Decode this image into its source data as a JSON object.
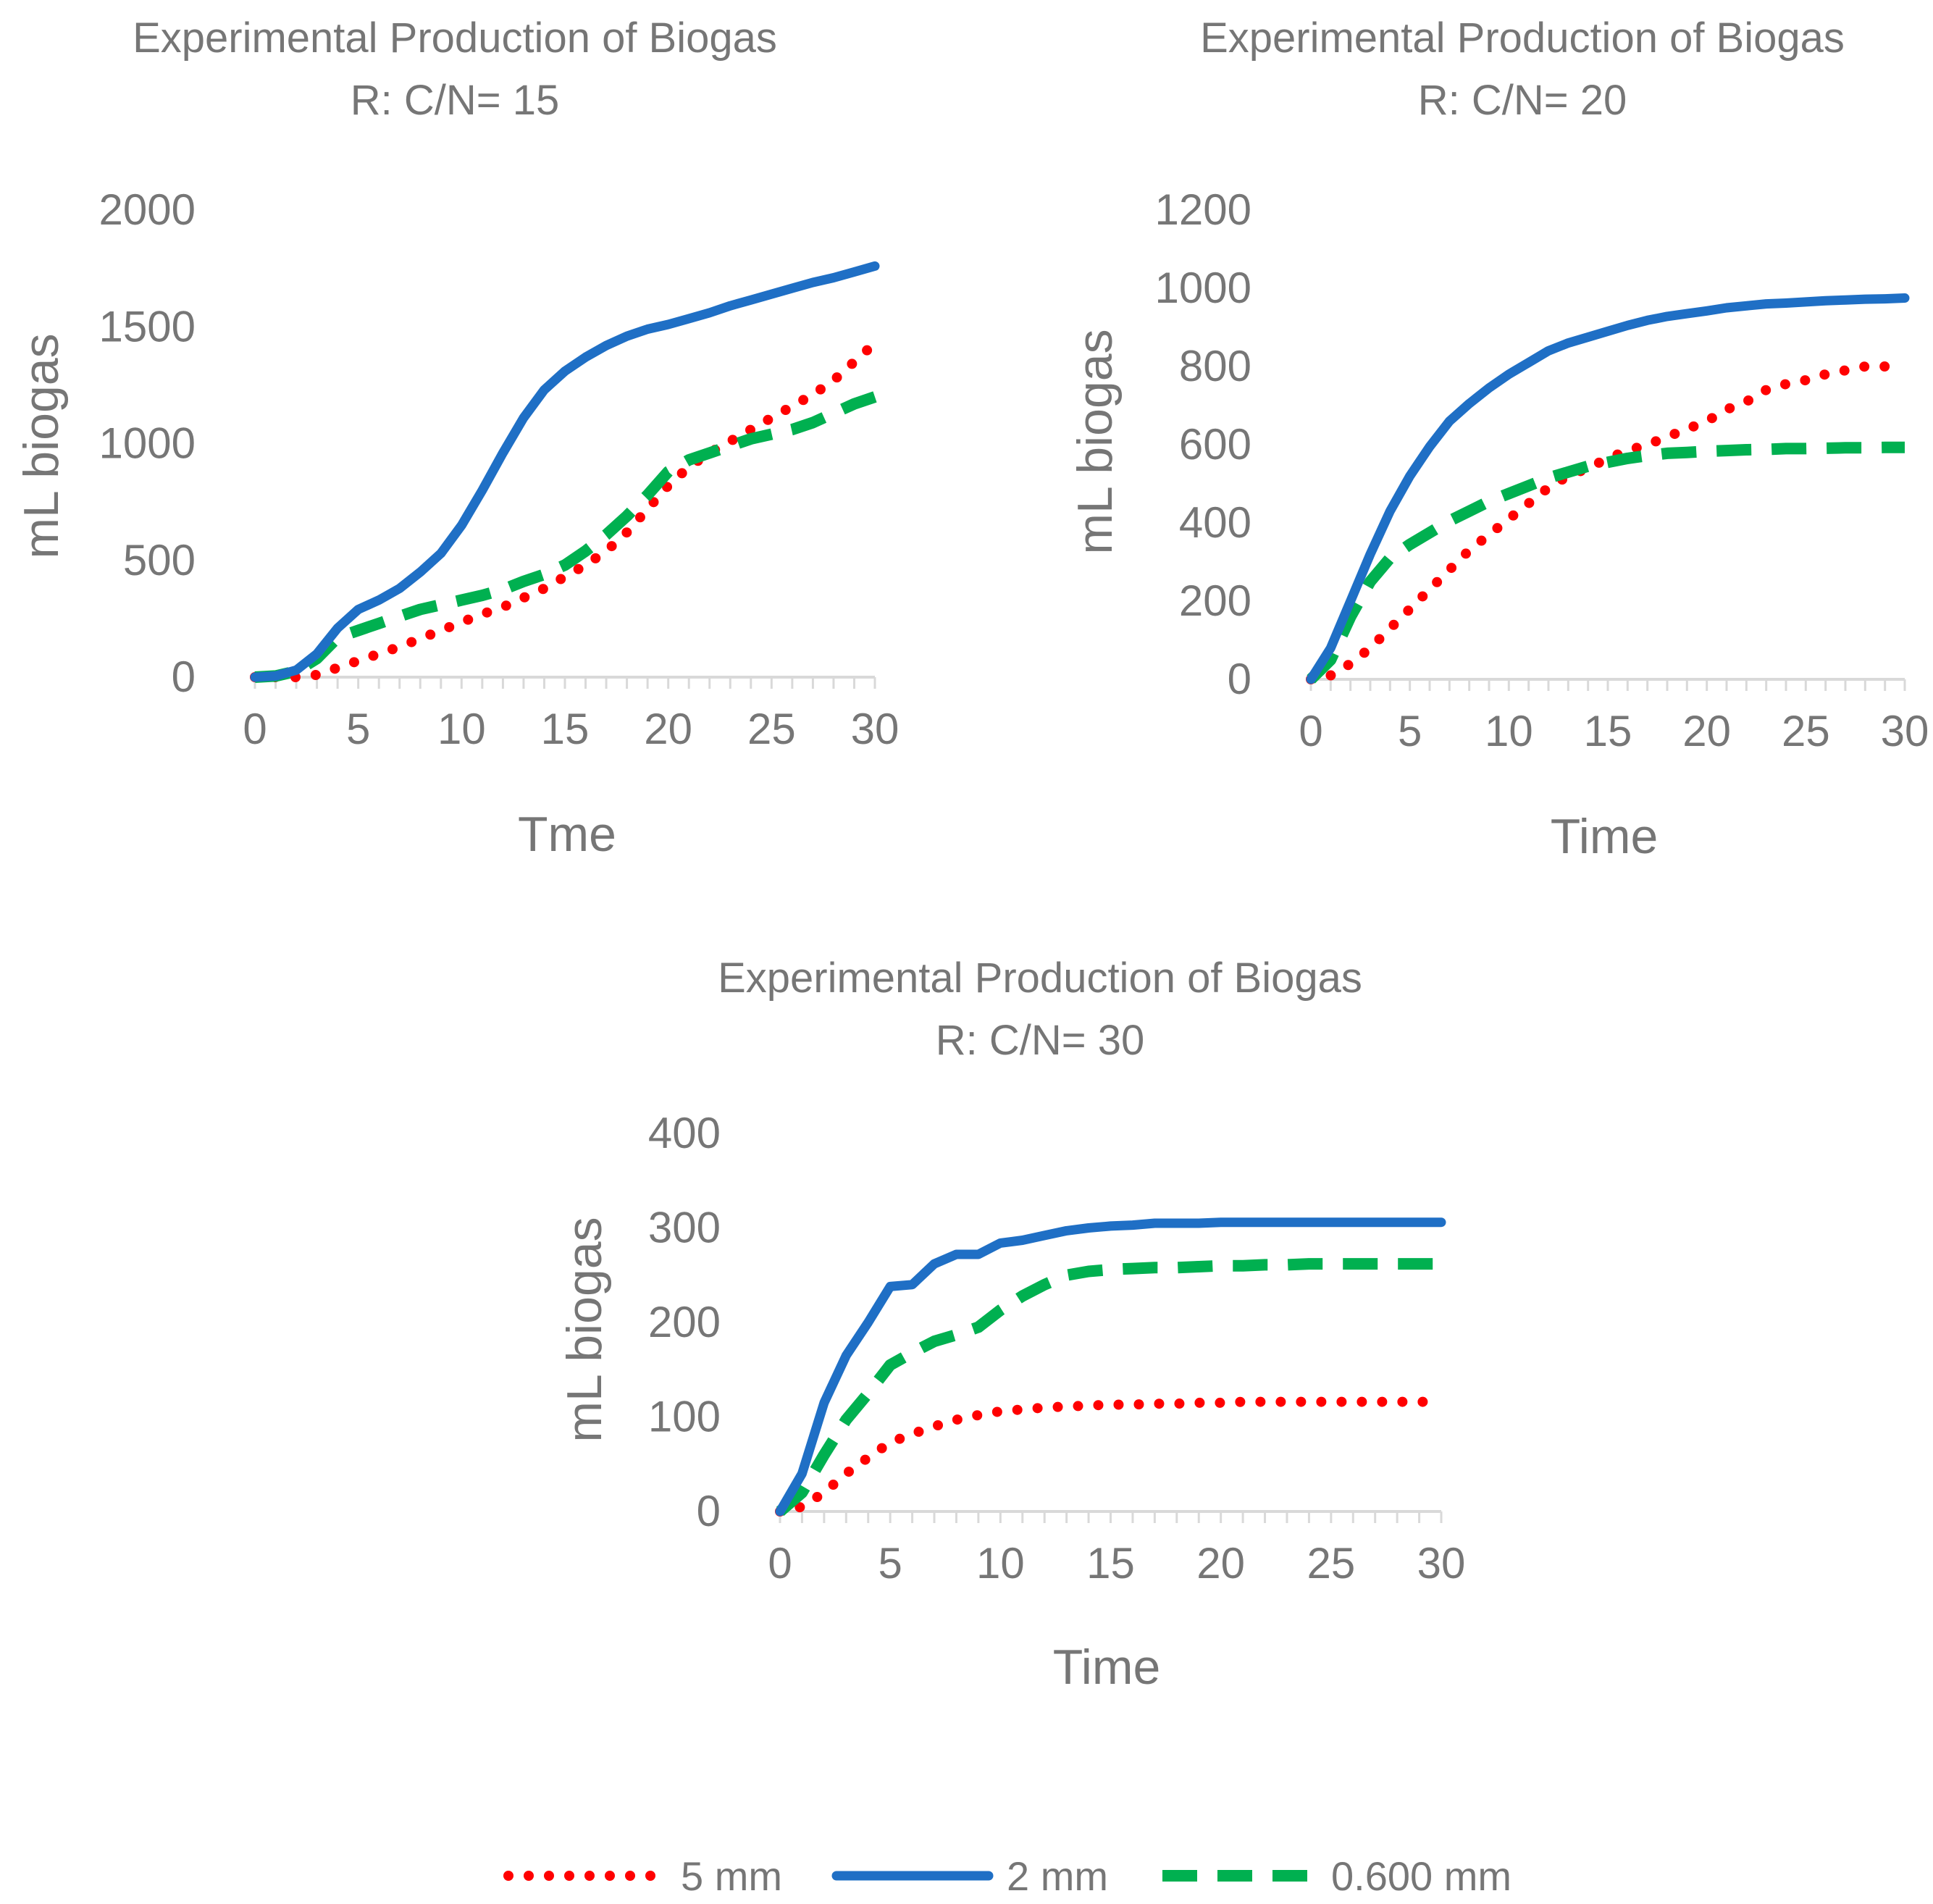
{
  "colors": {
    "text": "#767676",
    "axis": "#d9d9d9",
    "series_5mm": "#ff0000",
    "series_2mm": "#1f6fc5",
    "series_0600mm": "#00b050"
  },
  "legend": {
    "items": [
      {
        "label": "5 mm",
        "style": "dotted",
        "color": "#ff0000"
      },
      {
        "label": "2 mm",
        "style": "solid",
        "color": "#1f6fc5"
      },
      {
        "label": "0.600 mm",
        "style": "dashed",
        "color": "#00b050"
      }
    ]
  },
  "chart_data": [
    {
      "type": "line",
      "title": "Experimental Production of Biogas",
      "subtitle": "R: C/N= 15",
      "xlabel": "Tme",
      "ylabel": "mL biogas",
      "xlim": [
        0,
        30
      ],
      "ylim": [
        0,
        2000
      ],
      "xticks": [
        0,
        5,
        10,
        15,
        20,
        25,
        30
      ],
      "yticks": [
        0,
        500,
        1000,
        1500,
        2000
      ],
      "series": [
        {
          "name": "5 mm",
          "x": [
            0,
            1,
            2,
            3,
            4,
            5,
            6,
            7,
            8,
            9,
            10,
            11,
            12,
            13,
            14,
            15,
            16,
            17,
            18,
            19,
            20,
            21,
            22,
            23,
            24,
            25,
            26,
            27,
            28,
            29,
            30
          ],
          "values": [
            0,
            0,
            0,
            10,
            40,
            70,
            100,
            130,
            165,
            200,
            235,
            270,
            300,
            340,
            380,
            430,
            480,
            540,
            620,
            720,
            820,
            900,
            960,
            1010,
            1060,
            1110,
            1160,
            1210,
            1270,
            1350,
            1430
          ]
        },
        {
          "name": "2 mm",
          "x": [
            0,
            1,
            2,
            3,
            4,
            5,
            6,
            7,
            8,
            9,
            10,
            11,
            12,
            13,
            14,
            15,
            16,
            17,
            18,
            19,
            20,
            21,
            22,
            23,
            24,
            25,
            26,
            27,
            28,
            29,
            30
          ],
          "values": [
            0,
            5,
            30,
            100,
            210,
            290,
            330,
            380,
            450,
            530,
            650,
            800,
            960,
            1110,
            1230,
            1310,
            1370,
            1420,
            1460,
            1490,
            1510,
            1535,
            1560,
            1590,
            1615,
            1640,
            1665,
            1690,
            1710,
            1735,
            1760
          ]
        },
        {
          "name": "0.600 mm",
          "x": [
            0,
            1,
            2,
            3,
            4,
            5,
            6,
            7,
            8,
            9,
            10,
            11,
            12,
            13,
            14,
            15,
            16,
            17,
            18,
            19,
            20,
            21,
            22,
            23,
            24,
            25,
            26,
            27,
            28,
            29,
            30
          ],
          "values": [
            0,
            5,
            25,
            80,
            170,
            200,
            230,
            260,
            290,
            310,
            330,
            350,
            375,
            410,
            440,
            480,
            540,
            610,
            690,
            780,
            880,
            930,
            960,
            990,
            1020,
            1040,
            1060,
            1090,
            1130,
            1170,
            1200
          ]
        }
      ]
    },
    {
      "type": "line",
      "title": "Experimental Production of Biogas",
      "subtitle": "R: C/N= 20",
      "xlabel": "Time",
      "ylabel": "mL biogas",
      "xlim": [
        0,
        30
      ],
      "ylim": [
        0,
        1200
      ],
      "xticks": [
        0,
        5,
        10,
        15,
        20,
        25,
        30
      ],
      "yticks": [
        0,
        200,
        400,
        600,
        800,
        1000,
        1200
      ],
      "series": [
        {
          "name": "5 mm",
          "x": [
            0,
            1,
            2,
            3,
            4,
            5,
            6,
            7,
            8,
            9,
            10,
            11,
            12,
            13,
            14,
            15,
            16,
            17,
            18,
            19,
            20,
            21,
            22,
            23,
            24,
            25,
            26,
            27,
            28,
            29,
            30
          ],
          "values": [
            0,
            10,
            40,
            80,
            130,
            180,
            230,
            280,
            330,
            370,
            410,
            450,
            490,
            520,
            540,
            565,
            585,
            600,
            620,
            640,
            660,
            690,
            710,
            740,
            755,
            765,
            780,
            790,
            800,
            800,
            800
          ]
        },
        {
          "name": "2 mm",
          "x": [
            0,
            1,
            2,
            3,
            4,
            5,
            6,
            7,
            8,
            9,
            10,
            11,
            12,
            13,
            14,
            15,
            16,
            17,
            18,
            19,
            20,
            21,
            22,
            23,
            24,
            25,
            26,
            27,
            28,
            29,
            30
          ],
          "values": [
            0,
            80,
            200,
            320,
            430,
            520,
            595,
            660,
            705,
            745,
            780,
            810,
            840,
            860,
            875,
            890,
            905,
            918,
            928,
            935,
            942,
            950,
            955,
            960,
            962,
            965,
            968,
            970,
            972,
            973,
            975
          ]
        },
        {
          "name": "0.600 mm",
          "x": [
            0,
            1,
            2,
            3,
            4,
            5,
            6,
            7,
            8,
            9,
            10,
            11,
            12,
            13,
            14,
            15,
            16,
            17,
            18,
            19,
            20,
            21,
            22,
            23,
            24,
            25,
            26,
            27,
            28,
            29,
            30
          ],
          "values": [
            0,
            50,
            160,
            250,
            310,
            345,
            375,
            405,
            430,
            455,
            475,
            495,
            515,
            530,
            545,
            555,
            565,
            572,
            578,
            580,
            583,
            585,
            587,
            588,
            590,
            590,
            591,
            592,
            592,
            593,
            593
          ]
        }
      ]
    },
    {
      "type": "line",
      "title": "Experimental Production of Biogas",
      "subtitle": "R: C/N= 30",
      "xlabel": "Time",
      "ylabel": "mL biogas",
      "xlim": [
        0,
        30
      ],
      "ylim": [
        0,
        400
      ],
      "xticks": [
        0,
        5,
        10,
        15,
        20,
        25,
        30
      ],
      "yticks": [
        0,
        100,
        200,
        300,
        400
      ],
      "series": [
        {
          "name": "5 mm",
          "x": [
            0,
            1,
            2,
            3,
            4,
            5,
            6,
            7,
            8,
            9,
            10,
            11,
            12,
            13,
            14,
            15,
            16,
            17,
            18,
            19,
            20,
            21,
            22,
            23,
            24,
            25,
            26,
            27,
            28,
            29,
            30
          ],
          "values": [
            0,
            5,
            20,
            40,
            57,
            73,
            82,
            90,
            97,
            102,
            106,
            108,
            110,
            111,
            112,
            113,
            113,
            114,
            114,
            115,
            115,
            116,
            116,
            116,
            116,
            116,
            116,
            116,
            116,
            116,
            116
          ]
        },
        {
          "name": "2 mm",
          "x": [
            0,
            1,
            2,
            3,
            4,
            5,
            6,
            7,
            8,
            9,
            10,
            11,
            12,
            13,
            14,
            15,
            16,
            17,
            18,
            19,
            20,
            21,
            22,
            23,
            24,
            25,
            26,
            27,
            28,
            29,
            30
          ],
          "values": [
            0,
            40,
            115,
            165,
            200,
            238,
            240,
            262,
            272,
            272,
            284,
            287,
            292,
            297,
            300,
            302,
            303,
            305,
            305,
            305,
            306,
            306,
            306,
            306,
            306,
            306,
            306,
            306,
            306,
            306,
            306
          ]
        },
        {
          "name": "0.600 mm",
          "x": [
            0,
            1,
            2,
            3,
            4,
            5,
            6,
            7,
            8,
            9,
            10,
            11,
            12,
            13,
            14,
            15,
            16,
            17,
            18,
            19,
            20,
            21,
            22,
            23,
            24,
            25,
            26,
            27,
            28,
            29,
            30
          ],
          "values": [
            0,
            20,
            60,
            97,
            125,
            155,
            168,
            180,
            187,
            195,
            213,
            228,
            240,
            250,
            254,
            256,
            257,
            258,
            258,
            259,
            260,
            260,
            261,
            261,
            262,
            262,
            262,
            262,
            262,
            262,
            262
          ]
        }
      ]
    }
  ]
}
